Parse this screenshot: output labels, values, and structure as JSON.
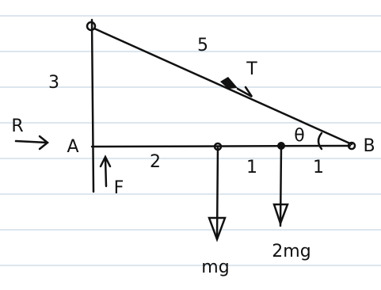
{
  "labels": {
    "hypotenuse": "5",
    "height": "3",
    "tension": "T",
    "reaction": "R",
    "point_a": "A",
    "segment_1": "2",
    "segment_2": "1",
    "segment_3": "1",
    "angle": "θ",
    "point_b": "B",
    "friction": "F",
    "weight_1": "mg",
    "weight_2": "2mg"
  }
}
